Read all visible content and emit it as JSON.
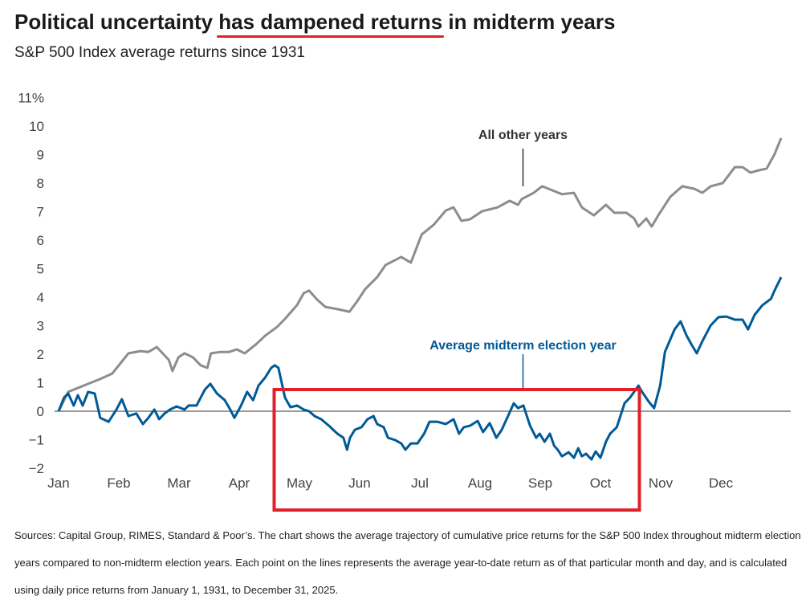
{
  "title": {
    "before": "Political uncertainty ",
    "highlight": "has dampened returns",
    "after": " in midterm years"
  },
  "subtitle": "S&P 500 Index average returns since 1931",
  "footer": "Sources: Capital Group, RIMES, Standard & Poor’s. The chart shows the average trajectory of cumulative price returns for the S&P 500 Index throughout midterm election years compared to non-midterm election years. Each point on the lines represents the average year-to-date return as of that particular month and day, and is calculated using daily price returns from January 1, 1931, to December 31, 2025.",
  "colors": {
    "other": "#8a8d91",
    "midterm": "#005a96",
    "highlight": "#e0202a",
    "axis": "#333333"
  },
  "chart_data": {
    "type": "line",
    "title": "Political uncertainty has dampened returns in midterm years",
    "subtitle": "S&P 500 Index average returns since 1931",
    "xlabel": "",
    "ylabel": "%",
    "x_unit": "months elapsed since Jan 1",
    "xlim": [
      0,
      12
    ],
    "ylim": [
      -2,
      11
    ],
    "x_ticks": [
      "Jan",
      "Feb",
      "Mar",
      "Apr",
      "May",
      "Jun",
      "Jul",
      "Aug",
      "Sep",
      "Oct",
      "Nov",
      "Dec"
    ],
    "y_ticks": [
      {
        "value": 11,
        "label": "11%"
      },
      {
        "value": 10,
        "label": "10"
      },
      {
        "value": 9,
        "label": "9"
      },
      {
        "value": 8,
        "label": "8"
      },
      {
        "value": 7,
        "label": "7"
      },
      {
        "value": 6,
        "label": "6"
      },
      {
        "value": 5,
        "label": "5"
      },
      {
        "value": 4,
        "label": "4"
      },
      {
        "value": 3,
        "label": "3"
      },
      {
        "value": 2,
        "label": "2"
      },
      {
        "value": 1,
        "label": "1"
      },
      {
        "value": 0,
        "label": "0"
      },
      {
        "value": -1,
        "label": "−1"
      },
      {
        "value": -2,
        "label": "−2"
      }
    ],
    "grid": false,
    "highlight_range": {
      "from_month": 3.7,
      "to_month": 9.5,
      "label": ""
    },
    "series": [
      {
        "name": "All other years",
        "annotation": "All other years",
        "annotation_at": 7.7,
        "points": [
          [
            0,
            0
          ],
          [
            0.16,
            0.68
          ],
          [
            0.36,
            0.85
          ],
          [
            0.49,
            0.96
          ],
          [
            0.69,
            1.13
          ],
          [
            0.89,
            1.32
          ],
          [
            1.03,
            1.69
          ],
          [
            1.16,
            2.03
          ],
          [
            1.36,
            2.11
          ],
          [
            1.49,
            2.08
          ],
          [
            1.63,
            2.25
          ],
          [
            1.83,
            1.8
          ],
          [
            1.89,
            1.41
          ],
          [
            1.99,
            1.89
          ],
          [
            2.09,
            2.03
          ],
          [
            2.23,
            1.89
          ],
          [
            2.36,
            1.61
          ],
          [
            2.47,
            1.52
          ],
          [
            2.53,
            2.03
          ],
          [
            2.69,
            2.08
          ],
          [
            2.83,
            2.08
          ],
          [
            2.96,
            2.17
          ],
          [
            3.09,
            2.03
          ],
          [
            3.29,
            2.37
          ],
          [
            3.43,
            2.65
          ],
          [
            3.63,
            2.96
          ],
          [
            3.76,
            3.24
          ],
          [
            3.96,
            3.72
          ],
          [
            4.07,
            4.14
          ],
          [
            4.16,
            4.23
          ],
          [
            4.29,
            3.92
          ],
          [
            4.43,
            3.66
          ],
          [
            4.63,
            3.58
          ],
          [
            4.83,
            3.49
          ],
          [
            4.96,
            3.86
          ],
          [
            5.09,
            4.28
          ],
          [
            5.29,
            4.7
          ],
          [
            5.43,
            5.13
          ],
          [
            5.56,
            5.27
          ],
          [
            5.69,
            5.41
          ],
          [
            5.85,
            5.21
          ],
          [
            6.03,
            6.2
          ],
          [
            6.23,
            6.54
          ],
          [
            6.43,
            7.04
          ],
          [
            6.56,
            7.15
          ],
          [
            6.69,
            6.68
          ],
          [
            6.83,
            6.73
          ],
          [
            7.03,
            7.01
          ],
          [
            7.29,
            7.15
          ],
          [
            7.49,
            7.38
          ],
          [
            7.63,
            7.24
          ],
          [
            7.69,
            7.44
          ],
          [
            7.89,
            7.66
          ],
          [
            8.03,
            7.89
          ],
          [
            8.23,
            7.72
          ],
          [
            8.36,
            7.61
          ],
          [
            8.56,
            7.66
          ],
          [
            8.69,
            7.15
          ],
          [
            8.89,
            6.87
          ],
          [
            9.09,
            7.24
          ],
          [
            9.23,
            6.96
          ],
          [
            9.43,
            6.96
          ],
          [
            9.56,
            6.76
          ],
          [
            9.63,
            6.48
          ],
          [
            9.76,
            6.76
          ],
          [
            9.85,
            6.48
          ],
          [
            9.96,
            6.87
          ],
          [
            10.16,
            7.52
          ],
          [
            10.36,
            7.89
          ],
          [
            10.56,
            7.8
          ],
          [
            10.69,
            7.66
          ],
          [
            10.83,
            7.89
          ],
          [
            11.03,
            8.0
          ],
          [
            11.23,
            8.56
          ],
          [
            11.36,
            8.56
          ],
          [
            11.49,
            8.37
          ],
          [
            11.63,
            8.45
          ],
          [
            11.76,
            8.51
          ],
          [
            11.89,
            9.01
          ],
          [
            12,
            9.58
          ]
        ]
      },
      {
        "name": "Average midterm election year",
        "annotation": "Average midterm election year",
        "annotation_at": 7.7,
        "points": [
          [
            0,
            0
          ],
          [
            0.09,
            0.48
          ],
          [
            0.16,
            0.62
          ],
          [
            0.25,
            0.2
          ],
          [
            0.32,
            0.56
          ],
          [
            0.4,
            0.2
          ],
          [
            0.49,
            0.68
          ],
          [
            0.6,
            0.62
          ],
          [
            0.69,
            -0.23
          ],
          [
            0.83,
            -0.37
          ],
          [
            0.96,
            0.06
          ],
          [
            1.05,
            0.42
          ],
          [
            1.16,
            -0.17
          ],
          [
            1.29,
            -0.08
          ],
          [
            1.4,
            -0.45
          ],
          [
            1.49,
            -0.23
          ],
          [
            1.59,
            0.06
          ],
          [
            1.67,
            -0.28
          ],
          [
            1.76,
            -0.08
          ],
          [
            1.85,
            0.06
          ],
          [
            1.96,
            0.17
          ],
          [
            2.09,
            0.06
          ],
          [
            2.16,
            0.2
          ],
          [
            2.29,
            0.2
          ],
          [
            2.43,
            0.76
          ],
          [
            2.52,
            0.96
          ],
          [
            2.63,
            0.62
          ],
          [
            2.76,
            0.39
          ],
          [
            2.85,
            0.06
          ],
          [
            2.92,
            -0.23
          ],
          [
            3.03,
            0.2
          ],
          [
            3.13,
            0.68
          ],
          [
            3.23,
            0.39
          ],
          [
            3.32,
            0.9
          ],
          [
            3.43,
            1.18
          ],
          [
            3.53,
            1.52
          ],
          [
            3.59,
            1.61
          ],
          [
            3.65,
            1.52
          ],
          [
            3.76,
            0.48
          ],
          [
            3.85,
            0.14
          ],
          [
            3.96,
            0.2
          ],
          [
            4.07,
            0.06
          ],
          [
            4.16,
            0
          ],
          [
            4.25,
            -0.17
          ],
          [
            4.36,
            -0.28
          ],
          [
            4.49,
            -0.51
          ],
          [
            4.63,
            -0.79
          ],
          [
            4.73,
            -0.93
          ],
          [
            4.79,
            -1.35
          ],
          [
            4.84,
            -0.93
          ],
          [
            4.92,
            -0.65
          ],
          [
            5.03,
            -0.56
          ],
          [
            5.13,
            -0.28
          ],
          [
            5.23,
            -0.17
          ],
          [
            5.29,
            -0.45
          ],
          [
            5.4,
            -0.56
          ],
          [
            5.47,
            -0.93
          ],
          [
            5.59,
            -1.01
          ],
          [
            5.69,
            -1.13
          ],
          [
            5.76,
            -1.35
          ],
          [
            5.85,
            -1.13
          ],
          [
            5.96,
            -1.13
          ],
          [
            6.07,
            -0.79
          ],
          [
            6.16,
            -0.37
          ],
          [
            6.29,
            -0.37
          ],
          [
            6.43,
            -0.45
          ],
          [
            6.56,
            -0.28
          ],
          [
            6.65,
            -0.79
          ],
          [
            6.73,
            -0.56
          ],
          [
            6.83,
            -0.51
          ],
          [
            6.96,
            -0.34
          ],
          [
            7.05,
            -0.73
          ],
          [
            7.16,
            -0.42
          ],
          [
            7.27,
            -0.93
          ],
          [
            7.36,
            -0.65
          ],
          [
            7.45,
            -0.23
          ],
          [
            7.56,
            0.28
          ],
          [
            7.63,
            0.11
          ],
          [
            7.72,
            0.2
          ],
          [
            7.83,
            -0.51
          ],
          [
            7.93,
            -0.93
          ],
          [
            7.99,
            -0.79
          ],
          [
            8.07,
            -1.07
          ],
          [
            8.16,
            -0.79
          ],
          [
            8.23,
            -1.21
          ],
          [
            8.29,
            -1.35
          ],
          [
            8.36,
            -1.58
          ],
          [
            8.47,
            -1.44
          ],
          [
            8.56,
            -1.63
          ],
          [
            8.63,
            -1.3
          ],
          [
            8.69,
            -1.58
          ],
          [
            8.76,
            -1.49
          ],
          [
            8.85,
            -1.69
          ],
          [
            8.92,
            -1.41
          ],
          [
            9.0,
            -1.63
          ],
          [
            9.09,
            -1.07
          ],
          [
            9.16,
            -0.79
          ],
          [
            9.27,
            -0.56
          ],
          [
            9.4,
            0.28
          ],
          [
            9.49,
            0.48
          ],
          [
            9.63,
            0.9
          ],
          [
            9.69,
            0.68
          ],
          [
            9.8,
            0.34
          ],
          [
            9.89,
            0.11
          ],
          [
            9.99,
            0.9
          ],
          [
            10.07,
            2.08
          ],
          [
            10.23,
            2.87
          ],
          [
            10.33,
            3.15
          ],
          [
            10.43,
            2.65
          ],
          [
            10.52,
            2.31
          ],
          [
            10.6,
            2.03
          ],
          [
            10.69,
            2.45
          ],
          [
            10.83,
            3.01
          ],
          [
            10.96,
            3.3
          ],
          [
            11.09,
            3.32
          ],
          [
            11.23,
            3.21
          ],
          [
            11.36,
            3.21
          ],
          [
            11.45,
            2.87
          ],
          [
            11.56,
            3.38
          ],
          [
            11.69,
            3.72
          ],
          [
            11.83,
            3.94
          ],
          [
            11.89,
            4.23
          ],
          [
            12,
            4.7
          ]
        ]
      }
    ]
  }
}
